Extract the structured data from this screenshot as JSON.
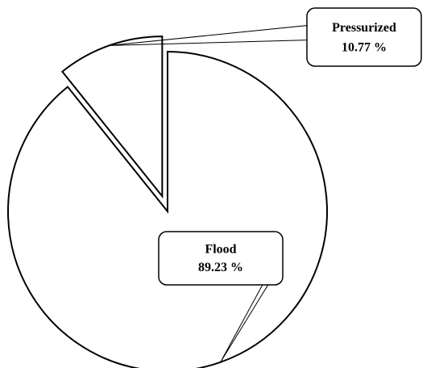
{
  "chart_data": {
    "type": "pie",
    "slices": [
      {
        "label": "Flood",
        "value": 89.23,
        "value_text": "89.23 %",
        "exploded": false
      },
      {
        "label": "Pressurized",
        "value": 10.77,
        "value_text": "10.77 %",
        "exploded": true
      }
    ],
    "fill_color": "#ffffff",
    "stroke_color": "#000000"
  }
}
